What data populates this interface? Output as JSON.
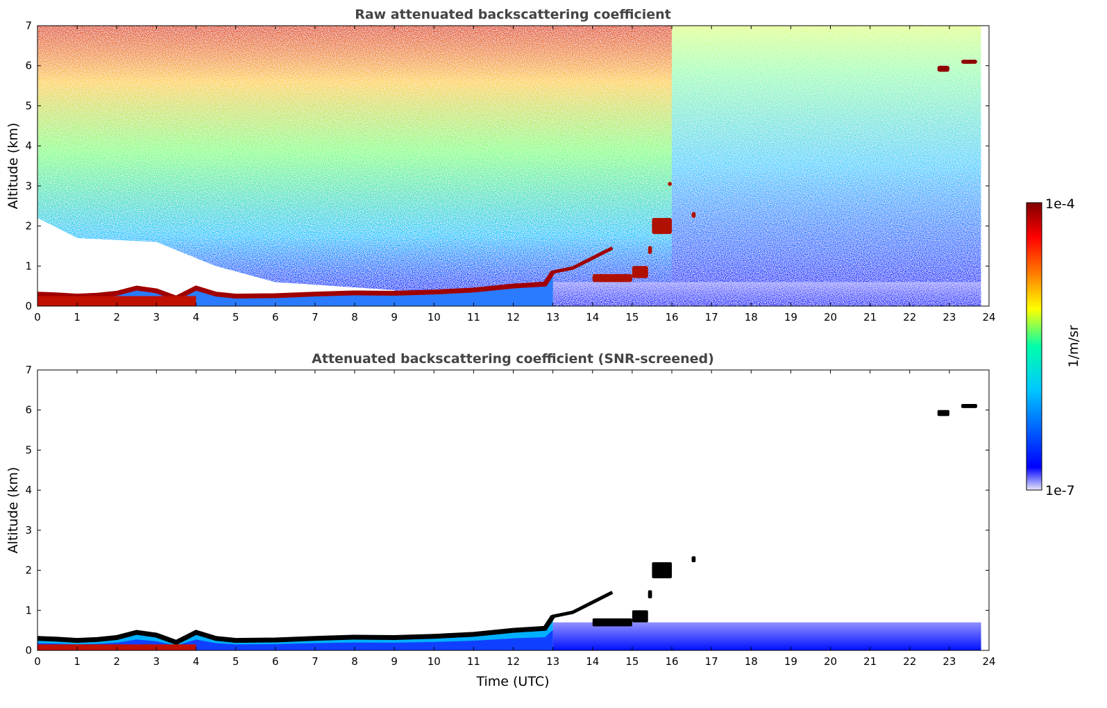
{
  "chart_data": [
    {
      "type": "heatmap",
      "title": "Raw attenuated backscattering coefficient",
      "xlabel": "",
      "ylabel": "Altitude (km)",
      "xlim": [
        0,
        24
      ],
      "ylim": [
        0,
        7
      ],
      "xticks": [
        0,
        1,
        2,
        3,
        4,
        5,
        6,
        7,
        8,
        9,
        10,
        11,
        12,
        13,
        14,
        15,
        16,
        17,
        18,
        19,
        20,
        21,
        22,
        23,
        24
      ],
      "yticks": [
        0,
        1,
        2,
        3,
        4,
        5,
        6,
        7
      ],
      "data_end_x": 23.8,
      "layer_top": [
        [
          0,
          0.3
        ],
        [
          0.5,
          0.28
        ],
        [
          1,
          0.25
        ],
        [
          1.5,
          0.27
        ],
        [
          2,
          0.32
        ],
        [
          2.5,
          0.45
        ],
        [
          3,
          0.38
        ],
        [
          3.5,
          0.2
        ],
        [
          4,
          0.45
        ],
        [
          4.5,
          0.3
        ],
        [
          5,
          0.25
        ],
        [
          6,
          0.26
        ],
        [
          7,
          0.3
        ],
        [
          8,
          0.33
        ],
        [
          9,
          0.32
        ],
        [
          10,
          0.35
        ],
        [
          11,
          0.4
        ],
        [
          12,
          0.5
        ],
        [
          12.8,
          0.55
        ],
        [
          13,
          0.85
        ],
        [
          13.5,
          0.95
        ],
        [
          14,
          1.2
        ],
        [
          14.5,
          1.45
        ]
      ],
      "aerosol_patches": [
        {
          "x": [
            14,
            15
          ],
          "y": [
            0.6,
            0.8
          ]
        },
        {
          "x": [
            15,
            15.4
          ],
          "y": [
            0.7,
            1.0
          ]
        },
        {
          "x": [
            15.4,
            15.5
          ],
          "y": [
            1.3,
            1.5
          ]
        },
        {
          "x": [
            15.5,
            16
          ],
          "y": [
            1.8,
            2.2
          ]
        },
        {
          "x": [
            16.5,
            16.6
          ],
          "y": [
            2.2,
            2.35
          ]
        },
        {
          "x": [
            15.9,
            16
          ],
          "y": [
            3.0,
            3.1
          ]
        }
      ],
      "cloud_patches": [
        {
          "x": [
            22.7,
            23.0
          ],
          "y": [
            5.85,
            6.0
          ]
        },
        {
          "x": [
            23.3,
            23.7
          ],
          "y": [
            6.05,
            6.15
          ]
        }
      ],
      "colormap": {
        "stops": [
          "#e8e8f8",
          "#0000ff",
          "#00c8ff",
          "#00ffaa",
          "#ffff00",
          "#ff8000",
          "#ff0000",
          "#800000"
        ]
      }
    },
    {
      "type": "heatmap",
      "title": "Attenuated backscattering coefficient (SNR-screened)",
      "xlabel": "Time (UTC)",
      "ylabel": "Altitude (km)",
      "xlim": [
        0,
        24
      ],
      "ylim": [
        0,
        7
      ],
      "xticks": [
        0,
        1,
        2,
        3,
        4,
        5,
        6,
        7,
        8,
        9,
        10,
        11,
        12,
        13,
        14,
        15,
        16,
        17,
        18,
        19,
        20,
        21,
        22,
        23,
        24
      ],
      "yticks": [
        0,
        1,
        2,
        3,
        4,
        5,
        6,
        7
      ],
      "data_end_x": 23.8,
      "layer_top": [
        [
          0,
          0.3
        ],
        [
          0.5,
          0.28
        ],
        [
          1,
          0.25
        ],
        [
          1.5,
          0.27
        ],
        [
          2,
          0.32
        ],
        [
          2.5,
          0.45
        ],
        [
          3,
          0.38
        ],
        [
          3.5,
          0.2
        ],
        [
          4,
          0.45
        ],
        [
          4.5,
          0.3
        ],
        [
          5,
          0.25
        ],
        [
          6,
          0.26
        ],
        [
          7,
          0.3
        ],
        [
          8,
          0.33
        ],
        [
          9,
          0.32
        ],
        [
          10,
          0.35
        ],
        [
          11,
          0.4
        ],
        [
          12,
          0.5
        ],
        [
          12.8,
          0.55
        ],
        [
          13,
          0.85
        ],
        [
          13.5,
          0.95
        ],
        [
          14,
          1.2
        ],
        [
          14.5,
          1.45
        ]
      ],
      "screened_top": 0.7,
      "cloud_patches": [
        {
          "x": [
            14,
            15
          ],
          "y": [
            0.6,
            0.8
          ]
        },
        {
          "x": [
            15,
            15.4
          ],
          "y": [
            0.7,
            1.0
          ]
        },
        {
          "x": [
            15.4,
            15.5
          ],
          "y": [
            1.3,
            1.5
          ]
        },
        {
          "x": [
            15.5,
            16
          ],
          "y": [
            1.8,
            2.2
          ]
        },
        {
          "x": [
            16.5,
            16.6
          ],
          "y": [
            2.2,
            2.35
          ]
        },
        {
          "x": [
            22.7,
            23.0
          ],
          "y": [
            5.85,
            6.0
          ]
        },
        {
          "x": [
            23.3,
            23.7
          ],
          "y": [
            6.05,
            6.15
          ]
        }
      ]
    }
  ],
  "colorbar": {
    "label": "1/m/sr",
    "max_label": "1e-4",
    "min_label": "1e-7",
    "stops": [
      "#e8e8f8",
      "#0000ff",
      "#00c8ff",
      "#00ffaa",
      "#ffff00",
      "#ff8000",
      "#ff0000",
      "#800000"
    ]
  }
}
